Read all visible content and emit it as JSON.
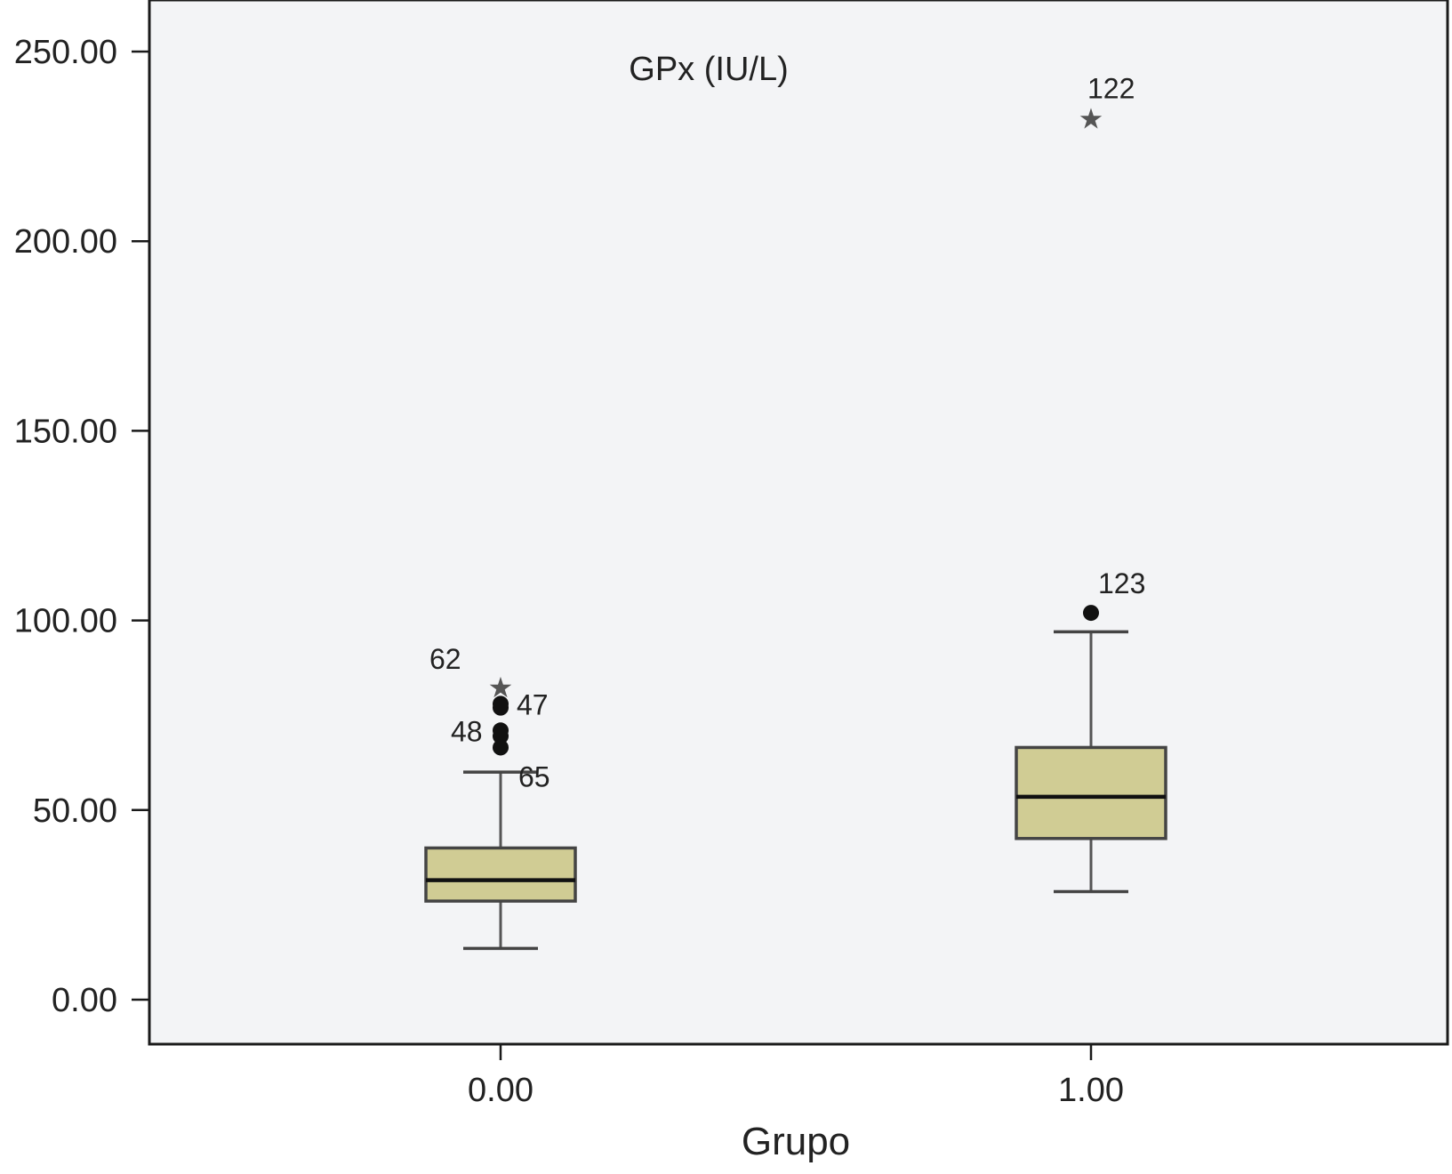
{
  "chart_data": {
    "type": "box",
    "title": "GPx (IU/L)",
    "xlabel": "Grupo",
    "ylabel": "",
    "categories": [
      "0.00",
      "1.00"
    ],
    "y_ticks": [
      "0.00",
      "50.00",
      "100.00",
      "150.00",
      "200.00",
      "250.00"
    ],
    "ylim": [
      -11,
      261
    ],
    "grid": false,
    "colors": {
      "plot_bg": "#f3f4f6",
      "box_fill": "#d0cc94",
      "axis": "#1a1a1a"
    },
    "boxes": [
      {
        "category": "0.00",
        "whisker_low": 13.5,
        "q1": 26.0,
        "median": 31.5,
        "q3": 40.0,
        "whisker_high": 60.0,
        "outliers": [
          {
            "value": 83.0,
            "label": "62",
            "marker": "star"
          },
          {
            "value": 78.0,
            "label": "47",
            "marker": "circle"
          },
          {
            "value": 77.0,
            "label": "",
            "marker": "circle"
          },
          {
            "value": 71.0,
            "label": "48",
            "marker": "circle"
          },
          {
            "value": 69.5,
            "label": "",
            "marker": "circle"
          },
          {
            "value": 66.5,
            "label": "65",
            "marker": "circle"
          }
        ]
      },
      {
        "category": "1.00",
        "whisker_low": 28.5,
        "q1": 42.5,
        "median": 53.5,
        "q3": 66.5,
        "whisker_high": 97.0,
        "outliers": [
          {
            "value": 233.0,
            "label": "122",
            "marker": "star"
          },
          {
            "value": 102.0,
            "label": "123",
            "marker": "circle"
          }
        ]
      }
    ]
  }
}
